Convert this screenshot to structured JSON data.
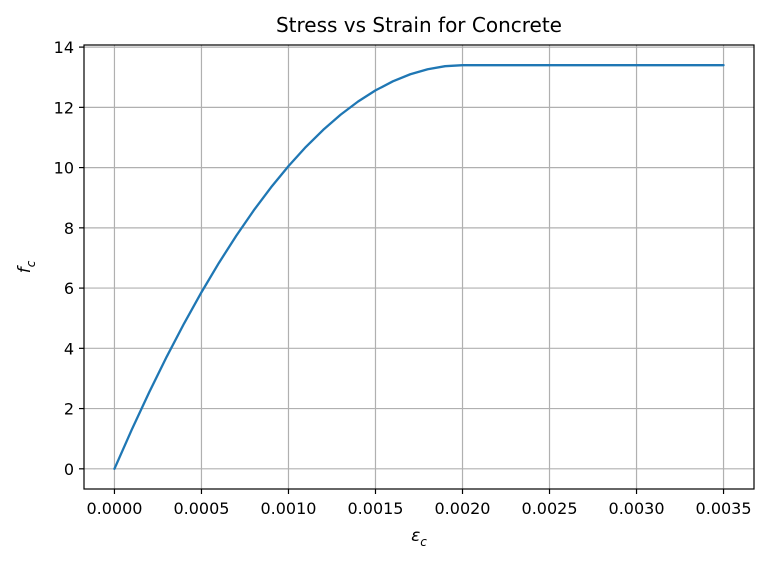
{
  "chart_data": {
    "type": "line",
    "title": "Stress vs Strain for Concrete",
    "xlabel": {
      "main": "ε",
      "sub": "c"
    },
    "ylabel": {
      "main": "f",
      "sub": "c"
    },
    "xlim": [
      -0.000175,
      0.003675
    ],
    "ylim": [
      -0.67,
      14.07
    ],
    "xticks": [
      0.0,
      0.0005,
      0.001,
      0.0015,
      0.002,
      0.0025,
      0.003,
      0.0035
    ],
    "xtick_labels": [
      "0.0000",
      "0.0005",
      "0.0010",
      "0.0015",
      "0.0020",
      "0.0025",
      "0.0030",
      "0.0035"
    ],
    "yticks": [
      0,
      2,
      4,
      6,
      8,
      10,
      12,
      14
    ],
    "ytick_labels": [
      "0",
      "2",
      "4",
      "6",
      "8",
      "10",
      "12",
      "14"
    ],
    "grid": true,
    "series": [
      {
        "color": "#1f77b4",
        "x": [
          0.0,
          0.0001,
          0.0002,
          0.0003,
          0.0004,
          0.0005,
          0.0006,
          0.0007,
          0.0008,
          0.0009,
          0.001,
          0.0011,
          0.0012,
          0.0013,
          0.0014,
          0.0015,
          0.0016,
          0.0017,
          0.0018,
          0.0019,
          0.002,
          0.0025,
          0.003,
          0.0035
        ],
        "y": [
          0.0,
          1.307,
          2.546,
          3.719,
          4.824,
          5.862,
          6.834,
          7.738,
          8.576,
          9.347,
          10.05,
          10.687,
          11.256,
          11.759,
          12.194,
          12.563,
          12.864,
          13.099,
          13.266,
          13.367,
          13.4,
          13.4,
          13.4,
          13.4
        ]
      }
    ]
  }
}
